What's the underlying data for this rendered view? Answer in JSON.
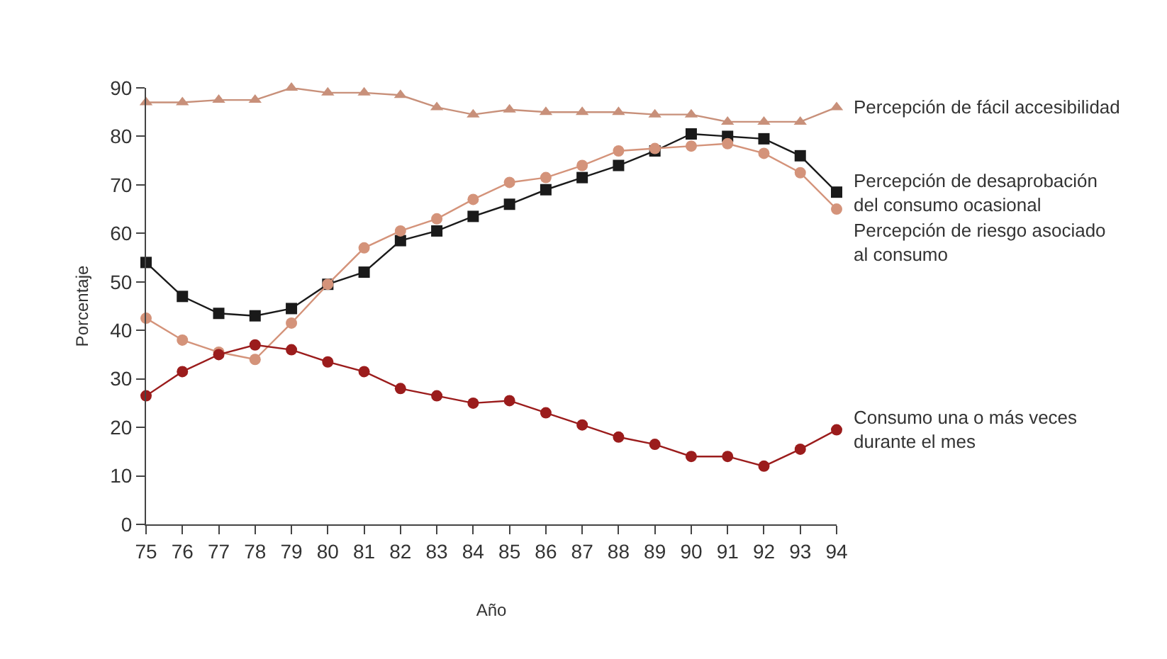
{
  "chart_data": {
    "type": "line",
    "xlabel": "Año",
    "ylabel": "Porcentaje",
    "x": [
      75,
      76,
      77,
      78,
      79,
      80,
      81,
      82,
      83,
      84,
      85,
      86,
      87,
      88,
      89,
      90,
      91,
      92,
      93,
      94
    ],
    "xlim": [
      75,
      94
    ],
    "xticks": [
      75,
      76,
      77,
      78,
      79,
      80,
      81,
      82,
      83,
      84,
      85,
      86,
      87,
      88,
      89,
      90,
      91,
      92,
      93,
      94
    ],
    "ylim": [
      0,
      90
    ],
    "yticks": [
      0,
      10,
      20,
      30,
      40,
      50,
      60,
      70,
      80,
      90
    ],
    "grid": false,
    "legend": false,
    "series": [
      {
        "name": "Percepción de fácil accesibilidad",
        "color": "#c8907a",
        "marker": "triangle",
        "values": [
          87,
          87,
          87.5,
          87.5,
          90,
          89,
          89,
          88.5,
          86,
          84.5,
          85.5,
          85,
          85,
          85,
          84.5,
          84.5,
          83,
          83,
          83,
          86
        ]
      },
      {
        "name": "Percepción de desaprobación del consumo ocasional",
        "color": "#1a1a1a",
        "marker": "square",
        "values": [
          54,
          47,
          43.5,
          43,
          44.5,
          49.5,
          52,
          58.5,
          60.5,
          63.5,
          66,
          69,
          71.5,
          74,
          77,
          80.5,
          80,
          79.5,
          76,
          68.5
        ]
      },
      {
        "name": "Percepción de riesgo asociado al consumo",
        "color": "#d4937a",
        "marker": "circle",
        "values": [
          42.5,
          38,
          35.5,
          34,
          41.5,
          49.5,
          57,
          60.5,
          63,
          67,
          70.5,
          71.5,
          74,
          77,
          77.5,
          78,
          78.5,
          76.5,
          72.5,
          65
        ]
      },
      {
        "name": "Consumo una o más veces durante el mes",
        "color": "#9b1c1c",
        "marker": "circle",
        "values": [
          26.5,
          31.5,
          35,
          37,
          36,
          33.5,
          31.5,
          28,
          26.5,
          25,
          25.5,
          23,
          20.5,
          18,
          16.5,
          14,
          14,
          12,
          15.5,
          19.5
        ]
      }
    ]
  }
}
